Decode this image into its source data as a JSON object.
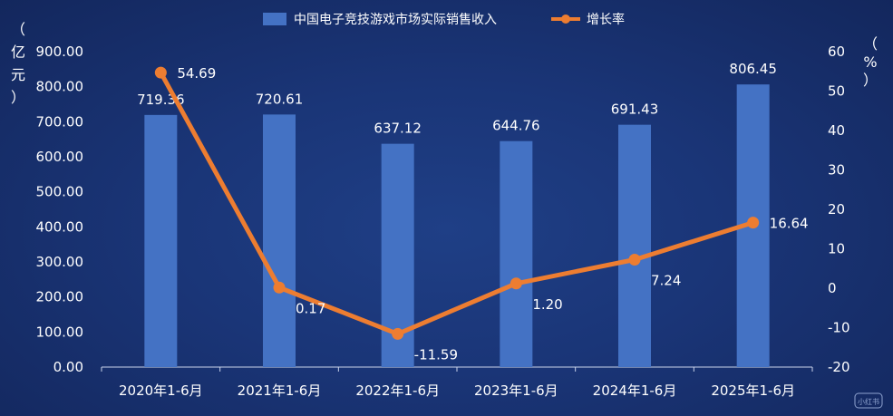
{
  "chart_data": {
    "type": "bar",
    "categories": [
      "2020年1-6月",
      "2021年1-6月",
      "2022年1-6月",
      "2023年1-6月",
      "2024年1-6月",
      "2025年1-6月"
    ],
    "series": [
      {
        "name": "中国电子竞技游戏市场实际销售收入",
        "type": "bar",
        "axis": "left",
        "values": [
          719.36,
          720.61,
          637.12,
          644.76,
          691.43,
          806.45
        ],
        "labels": [
          "719.36",
          "720.61",
          "637.12",
          "644.76",
          "691.43",
          "806.45"
        ]
      },
      {
        "name": "增长率",
        "type": "line",
        "axis": "right",
        "values": [
          54.69,
          0.17,
          -11.59,
          1.2,
          7.24,
          16.64
        ],
        "labels": [
          "54.69",
          "0.17",
          "-11.59",
          "1.20",
          "7.24",
          "16.64"
        ]
      }
    ],
    "y_left": {
      "unit_chars": [
        "（",
        "亿",
        "元",
        "）"
      ],
      "ylim": [
        0,
        900
      ],
      "ticks": [
        "0.00",
        "100.00",
        "200.00",
        "300.00",
        "400.00",
        "500.00",
        "600.00",
        "700.00",
        "800.00",
        "900.00"
      ]
    },
    "y_right": {
      "unit_chars": [
        "（",
        "%",
        "）"
      ],
      "ylim": [
        -20,
        60
      ],
      "ticks": [
        "-20",
        "-10",
        "0",
        "10",
        "20",
        "30",
        "40",
        "50",
        "60"
      ]
    },
    "legend_position": "top-center",
    "grid": false,
    "colors": {
      "bar": "#4472c4",
      "line": "#ed7d31",
      "text": "#ffffff",
      "axis": "#c9d3ea"
    }
  },
  "watermark": "小红书"
}
